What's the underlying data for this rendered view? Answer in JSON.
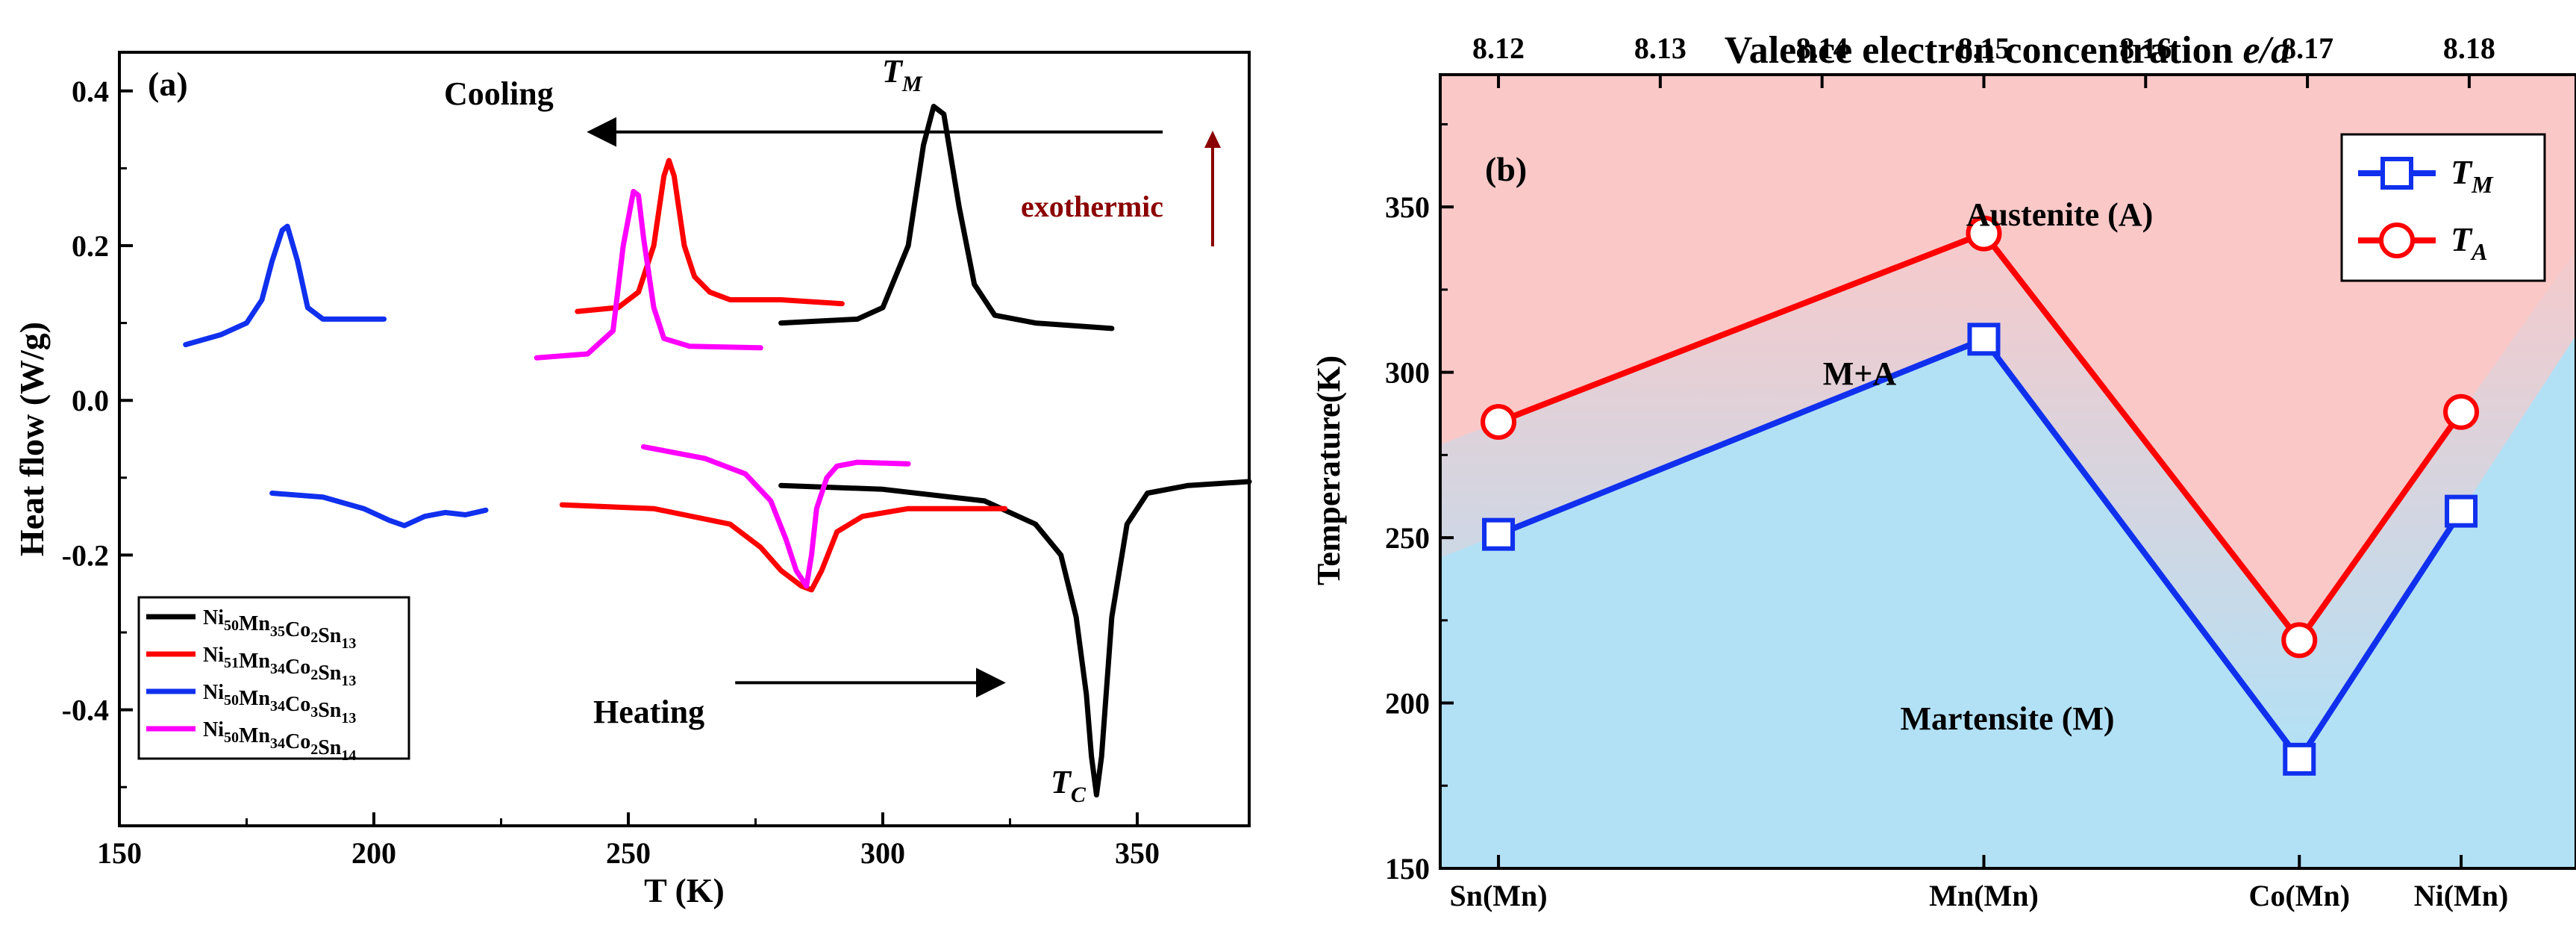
{
  "colors": {
    "black": "#000000",
    "red": "#ff0000",
    "blue": "#1030ee",
    "magenta": "#ff00ff",
    "darkred": "#8b0000",
    "austenite": "#fbc8c8",
    "martensite": "#b2e1f6"
  },
  "chart_data": [
    {
      "type": "line",
      "panel_label": "(a)",
      "xlabel": "T (K)",
      "ylabel": "Heat flow (W/g)",
      "xlim": [
        150,
        372
      ],
      "ylim": [
        -0.55,
        0.45
      ],
      "x_ticks": [
        150,
        200,
        250,
        300,
        350
      ],
      "y_ticks": [
        -0.4,
        -0.2,
        0.0,
        0.2,
        0.4
      ],
      "x_tick_labels": [
        "150",
        "200",
        "250",
        "300",
        "350"
      ],
      "y_tick_labels": [
        "-0.4",
        "-0.2",
        "0.0",
        "0.2",
        "0.4"
      ],
      "annotations": {
        "cooling": "Cooling",
        "heating": "Heating",
        "exothermic": "exothermic",
        "tm_main": "T",
        "tm_sub": "M",
        "tc_main": "T",
        "tc_sub": "C"
      },
      "legend": [
        {
          "segments": [
            [
              "Ni",
              "50"
            ],
            [
              "Mn",
              "35"
            ],
            [
              "Co",
              "2"
            ],
            [
              "Sn",
              "13"
            ]
          ],
          "color": "#000000"
        },
        {
          "segments": [
            [
              "Ni",
              "51"
            ],
            [
              "Mn",
              "34"
            ],
            [
              "Co",
              "2"
            ],
            [
              "Sn",
              "13"
            ]
          ],
          "color": "#ff0000"
        },
        {
          "segments": [
            [
              "Ni",
              "50"
            ],
            [
              "Mn",
              "34"
            ],
            [
              "Co",
              "3"
            ],
            [
              "Sn",
              "13"
            ]
          ],
          "color": "#1030ee"
        },
        {
          "segments": [
            [
              "Ni",
              "50"
            ],
            [
              "Mn",
              "34"
            ],
            [
              "Co",
              "2"
            ],
            [
              "Sn",
              "14"
            ]
          ],
          "color": "#ff00ff"
        }
      ],
      "series": [
        {
          "name": "Ni50Mn35Co2Sn13 cooling",
          "color": "#000000",
          "x": [
            280,
            295,
            300,
            305,
            308,
            310,
            312,
            315,
            318,
            322,
            330,
            345
          ],
          "y": [
            0.1,
            0.105,
            0.12,
            0.2,
            0.33,
            0.38,
            0.37,
            0.25,
            0.15,
            0.11,
            0.1,
            0.093
          ]
        },
        {
          "name": "Ni50Mn35Co2Sn13 heating",
          "color": "#000000",
          "x": [
            280,
            300,
            320,
            330,
            335,
            338,
            340,
            341,
            342,
            343,
            345,
            348,
            352,
            360,
            372
          ],
          "y": [
            -0.11,
            -0.115,
            -0.13,
            -0.16,
            -0.2,
            -0.28,
            -0.38,
            -0.46,
            -0.51,
            -0.46,
            -0.28,
            -0.16,
            -0.12,
            -0.11,
            -0.105
          ]
        },
        {
          "name": "Ni51Mn34Co2Sn13 cooling",
          "color": "#ff0000",
          "x": [
            240,
            248,
            252,
            255,
            257,
            258,
            259,
            261,
            263,
            266,
            270,
            280,
            292
          ],
          "y": [
            0.115,
            0.12,
            0.14,
            0.2,
            0.29,
            0.31,
            0.29,
            0.2,
            0.16,
            0.14,
            0.13,
            0.13,
            0.125
          ]
        },
        {
          "name": "Ni51Mn34Co2Sn13 heating",
          "color": "#ff0000",
          "x": [
            237,
            255,
            270,
            276,
            280,
            284,
            286,
            288,
            291,
            296,
            305,
            324
          ],
          "y": [
            -0.135,
            -0.14,
            -0.16,
            -0.19,
            -0.22,
            -0.24,
            -0.245,
            -0.22,
            -0.17,
            -0.15,
            -0.14,
            -0.14
          ]
        },
        {
          "name": "Ni50Mn34Co3Sn13 cooling",
          "color": "#1030ee",
          "x": [
            163,
            170,
            175,
            178,
            180,
            182,
            183,
            185,
            187,
            190,
            195,
            202
          ],
          "y": [
            0.072,
            0.085,
            0.1,
            0.13,
            0.18,
            0.22,
            0.225,
            0.18,
            0.12,
            0.105,
            0.105,
            0.105
          ]
        },
        {
          "name": "Ni50Mn34Co3Sn13 heating",
          "color": "#1030ee",
          "x": [
            180,
            190,
            198,
            203,
            206,
            210,
            214,
            218,
            222
          ],
          "y": [
            -0.12,
            -0.125,
            -0.14,
            -0.155,
            -0.162,
            -0.15,
            -0.145,
            -0.148,
            -0.142
          ]
        },
        {
          "name": "Ni50Mn34Co2Sn14 cooling",
          "color": "#ff00ff",
          "x": [
            232,
            242,
            247,
            249,
            251,
            252,
            253,
            255,
            257,
            262,
            276
          ],
          "y": [
            0.055,
            0.06,
            0.09,
            0.2,
            0.27,
            0.265,
            0.21,
            0.12,
            0.08,
            0.07,
            0.068
          ]
        },
        {
          "name": "Ni50Mn34Co2Sn14 heating",
          "color": "#ff00ff",
          "x": [
            253,
            265,
            273,
            278,
            281,
            283,
            285,
            286,
            287,
            289,
            291,
            295,
            305
          ],
          "y": [
            -0.06,
            -0.075,
            -0.095,
            -0.13,
            -0.18,
            -0.22,
            -0.24,
            -0.2,
            -0.14,
            -0.1,
            -0.085,
            -0.08,
            -0.082
          ]
        }
      ],
      "arrows": [
        {
          "name": "cooling-arrow",
          "from": [
            355,
            0.347
          ],
          "to": [
            243,
            0.347
          ]
        },
        {
          "name": "heating-arrow",
          "from": [
            271,
            -0.365
          ],
          "to": [
            323,
            -0.365
          ]
        }
      ]
    },
    {
      "type": "line",
      "panel_label": "(b)",
      "xlabel_top_prefix": "Valence electron concentration ",
      "xlabel_top_italic": "e/a",
      "ylabel": "Temperature(K)",
      "xlim": [
        8.1164,
        8.1866
      ],
      "ylim": [
        150,
        390
      ],
      "y_ticks": [
        150,
        200,
        250,
        300,
        350
      ],
      "y_tick_labels": [
        "150",
        "200",
        "250",
        "300",
        "350"
      ],
      "top_ticks": [
        8.12,
        8.13,
        8.14,
        8.15,
        8.16,
        8.17,
        8.18
      ],
      "top_tick_labels": [
        "8.12",
        "8.13",
        "8.14",
        "8.15",
        "8.16",
        "8.17",
        "8.18"
      ],
      "categories": [
        "Sn(Mn)",
        "Mn(Mn)",
        "Co(Mn)",
        "Ni(Mn)"
      ],
      "category_x": [
        8.12,
        8.15,
        8.1695,
        8.1795
      ],
      "series": [
        {
          "name": "T_M",
          "label_main": "T",
          "label_sub": "M",
          "color": "#1030ee",
          "marker": "square",
          "values": [
            251,
            310,
            183,
            258
          ]
        },
        {
          "name": "T_A",
          "label_main": "T",
          "label_sub": "A",
          "color": "#ff0000",
          "marker": "circle",
          "values": [
            285,
            342,
            219,
            288
          ]
        }
      ],
      "region_labels": {
        "austenite": "Austenite (A)",
        "mixed": "M+A",
        "martensite": "Martensite (M)"
      },
      "legend_position": "top-right"
    }
  ]
}
